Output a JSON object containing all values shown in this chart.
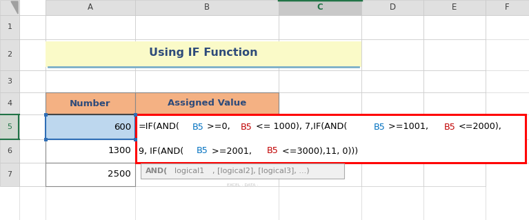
{
  "title": "Using IF Function",
  "title_bg": "#FAFAC8",
  "title_color": "#2E4B7A",
  "col_header_bg": "#F4B183",
  "col_header_text_color": "#2E4B7A",
  "col_headers": [
    "Number",
    "Assigned Value"
  ],
  "numbers": [
    "600",
    "1300",
    "2500"
  ],
  "row5_bg": "#BDD7EE",
  "formula_box_border": "#FF0000",
  "formula_line1_parts": [
    {
      "text": "=IF(AND(",
      "color": "#000000"
    },
    {
      "text": "B5",
      "color": "#0070C0"
    },
    {
      "text": ">=0, ",
      "color": "#000000"
    },
    {
      "text": "B5",
      "color": "#C00000"
    },
    {
      "text": "<= 1000), 7,IF(AND(",
      "color": "#000000"
    },
    {
      "text": "B5",
      "color": "#0070C0"
    },
    {
      "text": ">=1001, ",
      "color": "#000000"
    },
    {
      "text": "B5",
      "color": "#C00000"
    },
    {
      "text": "<=2000),",
      "color": "#000000"
    }
  ],
  "formula_line2_parts": [
    {
      "text": "9, IF(AND(",
      "color": "#000000"
    },
    {
      "text": "B5",
      "color": "#0070C0"
    },
    {
      "text": ">=2001, ",
      "color": "#000000"
    },
    {
      "text": "B5",
      "color": "#C00000"
    },
    {
      "text": "<=3000),11, 0)))",
      "color": "#000000"
    }
  ],
  "tooltip_bg": "#F0F0F0",
  "tooltip_border": "#AAAAAA",
  "tooltip_parts": [
    {
      "text": "AND(",
      "color": "#888888",
      "bold": true
    },
    {
      "text": "logical1",
      "color": "#888888",
      "bold": false
    },
    {
      "text": ", [logical2], [logical3], ...)",
      "color": "#888888",
      "bold": false
    }
  ],
  "bg_color": "#FFFFFF",
  "grid_color": "#C8C8C8",
  "header_bg": "#E0E0E0",
  "col_c_highlight_bg": "#C8C8C8",
  "col_c_top_border": "#217346",
  "active_row_header_bg": "#D0D8D0",
  "active_row_border": "#217346"
}
